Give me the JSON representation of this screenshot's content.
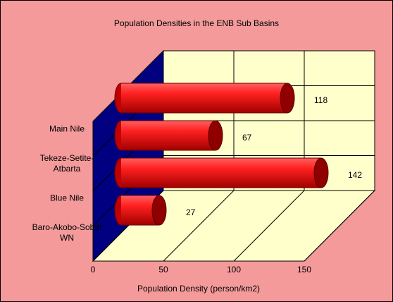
{
  "chart_data": {
    "type": "bar3d",
    "title": "Population Densities in the ENB Sub Basins",
    "categories": [
      "Main Nile",
      "Tekeze-Setite-Atbarta",
      "Blue Nile",
      "Baro-Akobo-Sobat WN"
    ],
    "values": [
      118,
      67,
      142,
      27
    ],
    "color": "#e00000",
    "xlim": [
      0,
      150
    ],
    "xticks": [
      0,
      50,
      100,
      150
    ],
    "x_label": "Population Density (person/km2)",
    "grid": true
  }
}
